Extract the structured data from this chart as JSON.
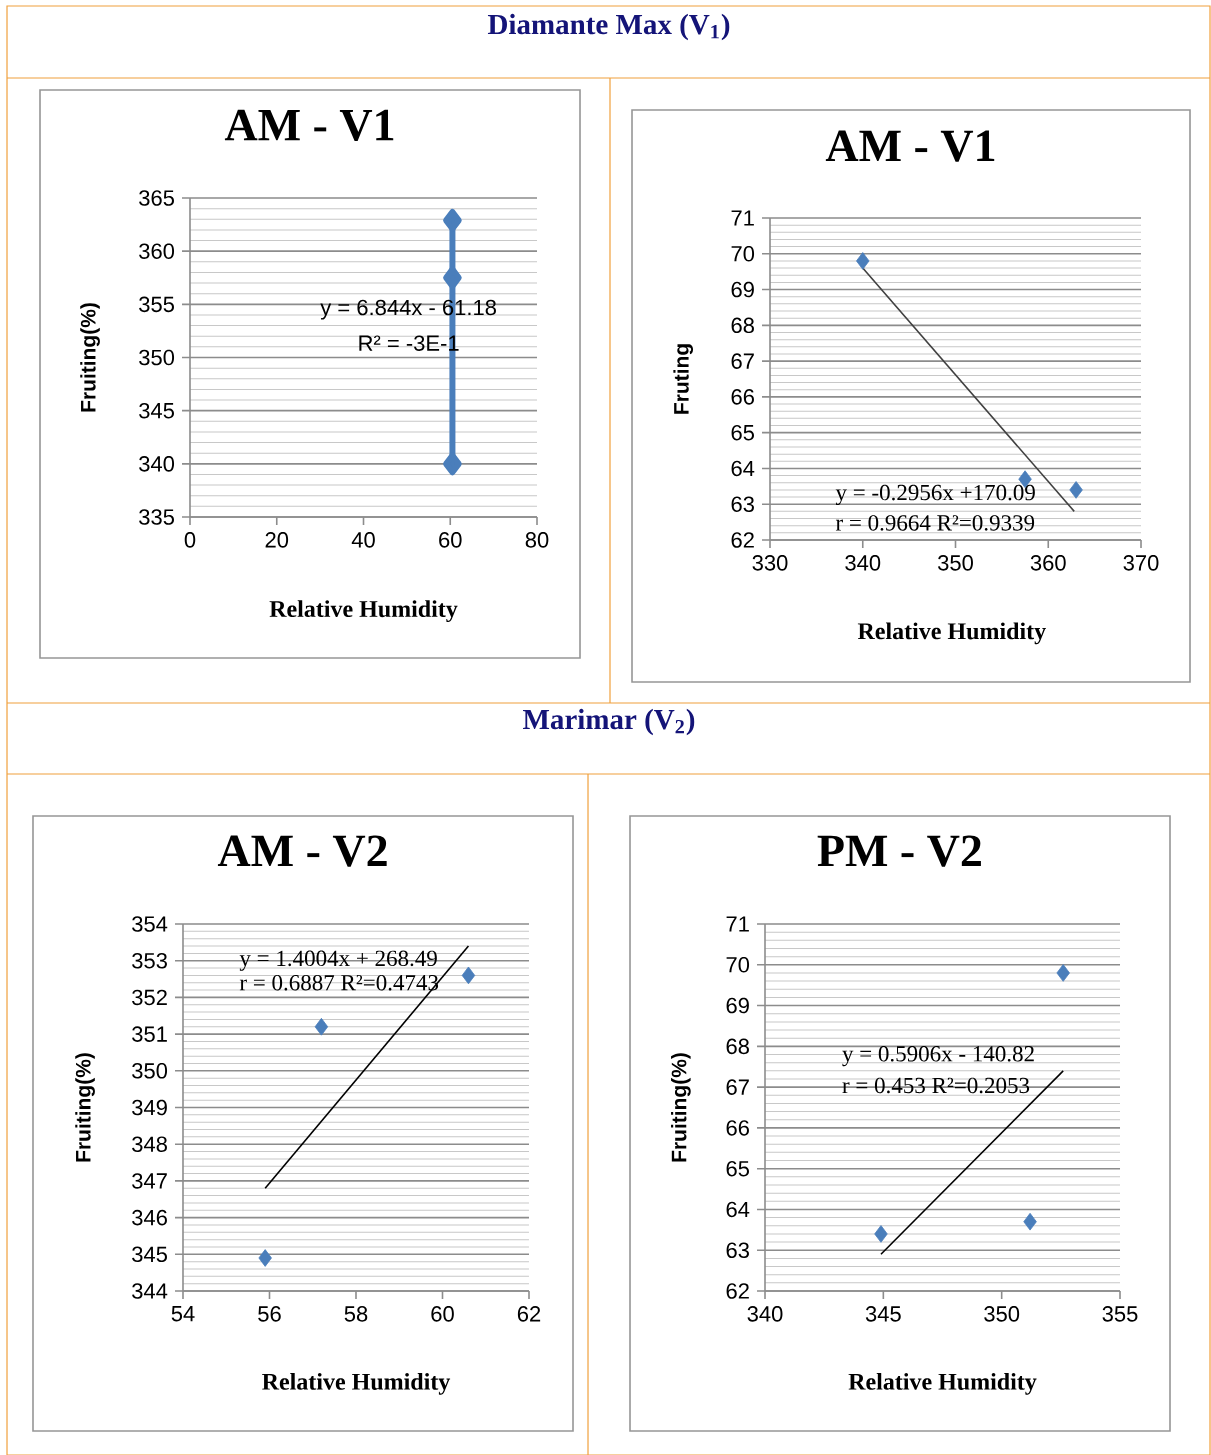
{
  "chart_data": [
    {
      "type": "line",
      "title": "AM - V1",
      "xlabel": "Relative Humidity",
      "ylabel": "Fruiting(%)",
      "annotations": [
        "Diamante Max  (V$_{1}$)",
        "y = 6.844x - 61.18",
        "R² = -3E-1"
      ],
      "xlim": [
        0,
        80
      ],
      "xticks": [
        0,
        20,
        40,
        60,
        80
      ],
      "ylim": [
        335,
        365
      ],
      "yticks": [
        335,
        340,
        345,
        350,
        355,
        360,
        365
      ],
      "grid": "y",
      "marker": "diamond",
      "series": [
        {
          "color": "#4a7ebb",
          "x": [
            60.5,
            60.5,
            60.5
          ],
          "values": [
            340,
            357.5,
            362.9
          ]
        }
      ]
    },
    {
      "type": "scatter",
      "title": "AM - V1",
      "xlabel": "Relative Humidity",
      "ylabel": "Fruting",
      "annotations": [
        "y = -0.2956x +170.09",
        "r = 0.9664 R²=0.9339"
      ],
      "xlim": [
        330,
        370
      ],
      "xticks": [
        330,
        340,
        350,
        360,
        370
      ],
      "ylim": [
        62,
        71
      ],
      "yticks": [
        62,
        63,
        64,
        65,
        66,
        67,
        68,
        69,
        70,
        71
      ],
      "grid": "y",
      "marker": "diamond",
      "series": [
        {
          "color": "#4a7ebb",
          "x": [
            340,
            357.5,
            363
          ],
          "values": [
            69.8,
            63.7,
            63.4
          ]
        },
        {
          "type": "line",
          "marker": "none",
          "color": "#404040",
          "x": [
            340,
            362.8
          ],
          "values": [
            69.6,
            62.8
          ]
        }
      ]
    },
    {
      "type": "scatter",
      "title": "AM - V2",
      "xlabel": "Relative Humidity",
      "ylabel": "Fruiting(%)",
      "annotations": [
        "Marimar  (V$_{2}$)",
        "y = 1.4004x + 268.49",
        "r = 0.6887 R²=0.4743"
      ],
      "xlim": [
        54,
        62
      ],
      "xticks": [
        54,
        56,
        58,
        60,
        62
      ],
      "ylim": [
        344,
        354
      ],
      "yticks": [
        344,
        345,
        346,
        347,
        348,
        349,
        350,
        351,
        352,
        353,
        354
      ],
      "grid": "y",
      "marker": "diamond",
      "series": [
        {
          "color": "#4a7ebb",
          "x": [
            55.9,
            57.2,
            60.6
          ],
          "values": [
            344.9,
            351.2,
            352.6
          ]
        },
        {
          "type": "line",
          "marker": "none",
          "color": "#000000",
          "x": [
            55.9,
            60.6
          ],
          "values": [
            346.8,
            353.4
          ]
        }
      ]
    },
    {
      "type": "scatter",
      "title": "PM - V2",
      "xlabel": "Relative Humidity",
      "ylabel": "Fruiting(%)",
      "annotations": [
        "y = 0.5906x - 140.82",
        "r = 0.453 R²=0.2053"
      ],
      "xlim": [
        340,
        355
      ],
      "xticks": [
        340,
        345,
        350,
        355
      ],
      "ylim": [
        62,
        71
      ],
      "yticks": [
        62,
        63,
        64,
        65,
        66,
        67,
        68,
        69,
        70,
        71
      ],
      "grid": "y",
      "marker": "diamond",
      "series": [
        {
          "color": "#4a7ebb",
          "x": [
            344.9,
            351.2,
            352.6
          ],
          "values": [
            63.4,
            63.7,
            69.8
          ]
        },
        {
          "type": "line",
          "marker": "none",
          "color": "#000000",
          "x": [
            344.9,
            352.6
          ],
          "values": [
            62.9,
            67.4
          ]
        }
      ]
    }
  ]
}
